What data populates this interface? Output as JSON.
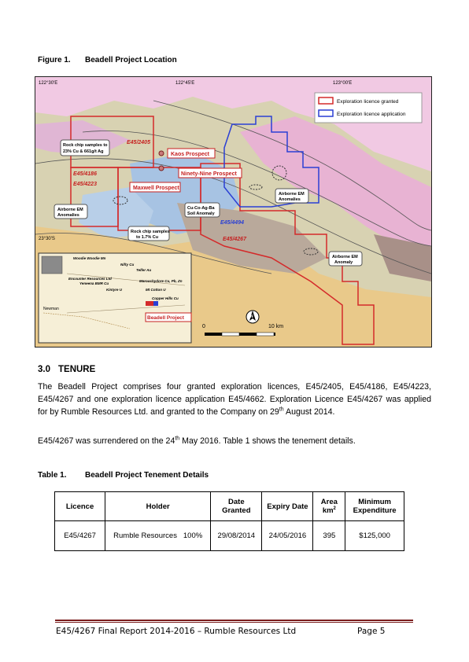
{
  "figure": {
    "number": "Figure 1.",
    "title": "Beadell Project Location",
    "map": {
      "lon_labels": [
        "122°30'E",
        "122°45'E",
        "123°00'E"
      ],
      "lat_label": "23°30'S",
      "legend": [
        "Exploration licence granted",
        "Exploration licence application"
      ],
      "legend_colors": [
        "#d42a2a",
        "#2a3fd4"
      ],
      "tenement_labels": [
        "E45/2405",
        "E45/4186",
        "E45/4223",
        "E45/4494",
        "E45/4267"
      ],
      "prospects": [
        "Kaos Prospect",
        "Ninety-Nine Prospect",
        "Maxwell Prospect",
        "Beadell Project"
      ],
      "callouts": {
        "rock_chip_1": [
          "Rock chip samples to",
          "23% Cu & 661g/t Ag"
        ],
        "airborne_1": [
          "Airborne EM",
          "Anomalies"
        ],
        "cu_soil": [
          "Cu-Co-Ag-Ba",
          "Soil Anomaly"
        ],
        "rock_chip_2": [
          "Rock chip samples",
          "to 1.7% Cu"
        ],
        "airborne_2": [
          "Airborne EM",
          "Anomalies"
        ],
        "airborne_3": [
          "Airborne EM",
          "Anomaly"
        ]
      },
      "inset_labels": [
        "Woodie Woodie Mn",
        "Nifty Cu",
        "Telfer Au",
        "Encounter Resources Ltd",
        "Yeneena BMR Cu",
        "Kintyre U",
        "Maroochydore Cu, Pb, Zn",
        "Mt Cotton U",
        "Copper Hills Cu",
        "Newman"
      ],
      "scale_labels": [
        "0",
        "10 km"
      ],
      "north_label": "N"
    }
  },
  "section": {
    "number": "3.0",
    "title": "TENURE",
    "para1": {
      "text_a": "The Beadell Project comprises four granted exploration licences, E45/2405, E45/4186, E45/4223, E45/4267 and one exploration licence application E45/4662. Exploration Licence E45/4267 was applied for by Rumble Resources Ltd. and granted to the Company on 29",
      "sup": "th",
      "text_b": " August 2014."
    },
    "para2": {
      "text_a": "E45/4267 was surrendered on the 24",
      "sup": "th",
      "text_b": " May 2016. Table 1 shows the tenement details."
    }
  },
  "table": {
    "number": "Table 1.",
    "title": "Beadell Project Tenement Details",
    "headers": {
      "licence": "Licence",
      "holder": "Holder",
      "date_granted_1": "Date",
      "date_granted_2": "Granted",
      "expiry": "Expiry Date",
      "area_1": "Area",
      "area_2": "km",
      "area_sup": "2",
      "min_exp_1": "Minimum",
      "min_exp_2": "Expenditure"
    },
    "rows": [
      {
        "licence": "E45/4267",
        "holder": "Rumble Resources",
        "share": "100%",
        "date_granted": "29/08/2014",
        "expiry": "24/05/2016",
        "area": "395",
        "min_exp": "$125,000"
      }
    ]
  },
  "footer": {
    "left": "E45/4267 Final Report 2014-2016 – Rumble Resources Ltd",
    "right": "Page 5"
  }
}
